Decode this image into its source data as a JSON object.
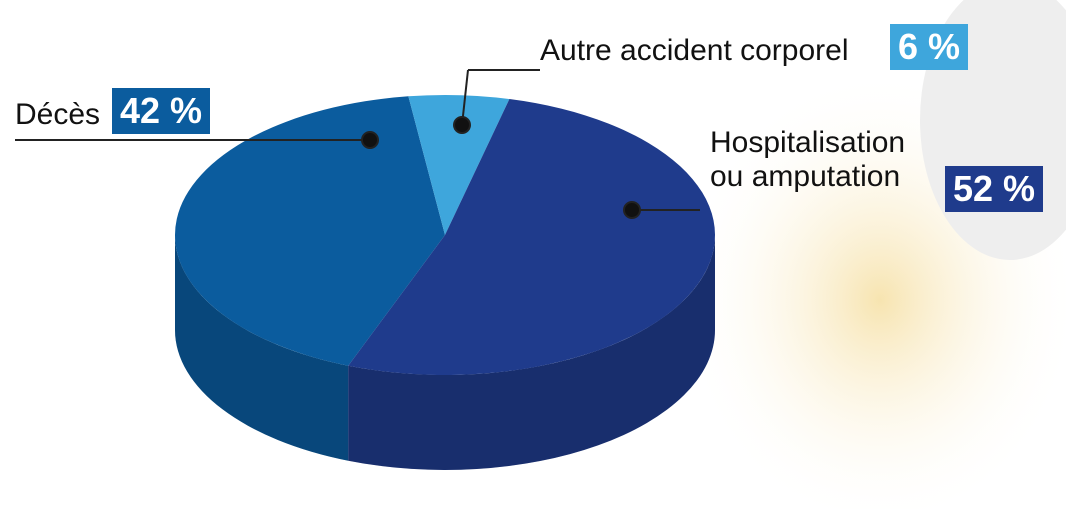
{
  "chart_data": {
    "type": "pie",
    "categories": [
      "Décès",
      "Autre accident corporel",
      "Hospitalisation ou amputation"
    ],
    "values": [
      42,
      6,
      52
    ],
    "value_labels": [
      "42 %",
      "6 %",
      "52 %"
    ],
    "colors": [
      "#0b5c9e",
      "#3ea6dc",
      "#1f3b8c"
    ]
  }
}
